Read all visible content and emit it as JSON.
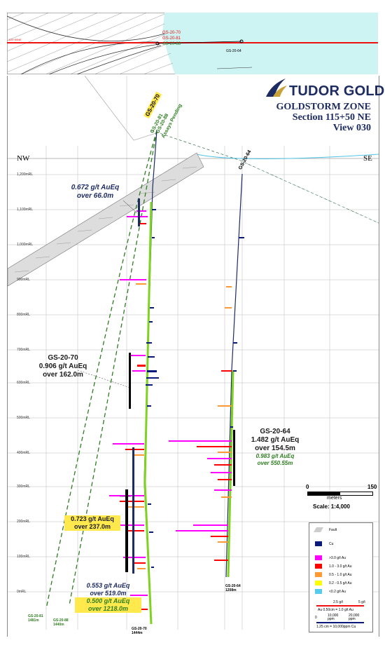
{
  "inset": {
    "section_line_label": "115+50NE",
    "holes": [
      "GS-20-70",
      "GS-20-81",
      "GS-20-88"
    ],
    "hole_other": "GS-20-64"
  },
  "header": {
    "logo_text": "TUDOR GOLD",
    "zone": "GOLDSTORM ZONE",
    "section": "Section 115+50 NE",
    "view": "View 030"
  },
  "directions": {
    "left": "NW",
    "right": "SE"
  },
  "elevations": [
    "1,200mRL",
    "1,100mRL",
    "1,000mRL",
    "900mRL",
    "800mRL",
    "700mRL",
    "600mRL",
    "500mRL",
    "400mRL",
    "300mRL",
    "200mRL",
    "100mRL",
    "0mRL"
  ],
  "collar_labels": {
    "gs70": "GS-20-70",
    "gs81_88": "GS-20-81",
    "gs88": "GS-20-88",
    "pending": "Assays Pending",
    "gs64": "GS-20-64"
  },
  "callouts": {
    "c1_l1": "0.672 g/t AuEq",
    "c1_l2": "over 66.0m",
    "c2_l1": "GS-20-70",
    "c2_l2": "0.906 g/t AuEq",
    "c2_l3": "over 162.0m",
    "c3_l1": "GS-20-64",
    "c3_l2": "1.482 g/t AuEq",
    "c3_l3": "over 154.5m",
    "c3_l4": "0.983 g/t AuEq",
    "c3_l5": "over 550.55m",
    "c4_l1": "0.723 g/t AuEq",
    "c4_l2": "over 237.0m",
    "c5_l1": "0.553 g/t AuEq",
    "c5_l2": "over 519.0m",
    "c5_l3": "0.500 g/t AuEq",
    "c5_l4": "over 1218.0m"
  },
  "end_of_hole": {
    "gs81": "GS-20-81",
    "gs81_depth": "1481m",
    "gs88": "GS-20-88",
    "gs88_depth": "1440m",
    "gs70": "GS-20-70",
    "gs70_depth": "1444m",
    "gs64": "GS-20-64",
    "gs64_depth": "1208m"
  },
  "scale": {
    "zero": "0",
    "max": "150",
    "unit": "meters",
    "label": "Scale: 1:4,000"
  },
  "legend": {
    "fault": "Fault",
    "cu": "Cu",
    "items": [
      ">3.0 g/t Au",
      "1.0 - 3.0 g/t Au",
      "0.5 - 1.0 g/t Au",
      "0.2 - 0.5 g/t Au",
      "<0.2 g/t Au"
    ],
    "au_scale_mid": "2.5 g/t",
    "au_scale_max": "5 g/t",
    "au_note": "Au 0.50cm = 1.0 g/t Au",
    "cu_zero": "0",
    "cu_mid": "10,000 ppm",
    "cu_max": "20,000 ppm",
    "cu_note": "1.25 cm = 10,000ppm Cu"
  },
  "colors": {
    "au_gt3": "#ff00ff",
    "au_1_3": "#ff0000",
    "au_05_1": "#ff9933",
    "au_02_05": "#ffff00",
    "au_lt02": "#55ccee",
    "cu": "#0a1a7a",
    "water": "#cdf3f3",
    "hole_green": "#7ed321",
    "dashed_green": "#2e7d20",
    "accent": "#1d2b63"
  }
}
